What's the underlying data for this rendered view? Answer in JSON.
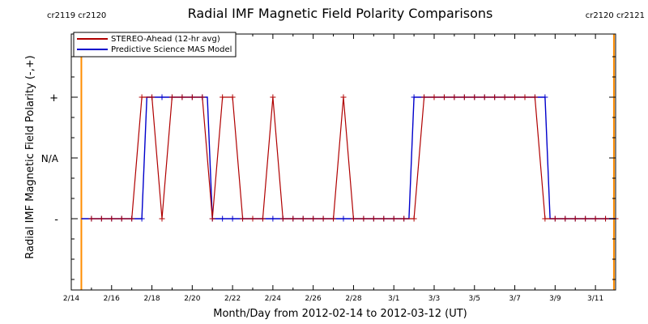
{
  "colors": {
    "stereo": "#b00000",
    "model": "#0000cc",
    "carrington": "#ff8c00"
  },
  "carrington_labels": {
    "left": "cr2119 cr2120",
    "right": "cr2120 cr2121"
  },
  "chart_data": {
    "type": "line",
    "title": "Radial IMF Magnetic Field Polarity Comparisons",
    "xlabel": "Month/Day from 2012-02-14 to 2012-03-12 (UT)",
    "ylabel": "Radial IMF Magnetic Field Polarity (-,+)",
    "x_tick_labels": [
      "2/14",
      "2/16",
      "2/18",
      "2/20",
      "2/22",
      "2/24",
      "2/26",
      "2/28",
      "3/1",
      "3/3",
      "3/5",
      "3/7",
      "3/9",
      "3/11"
    ],
    "y_tick_labels": [
      "-",
      "N/A",
      "+"
    ],
    "xlim": [
      "2012-02-14",
      "2012-03-12"
    ],
    "carrington_boundaries": [
      "2012-02-14 12:00",
      "2012-03-11 22:00"
    ],
    "legend_position": "top-left",
    "series": [
      {
        "name": "STEREO-Ahead (12-hr avg)",
        "points": [
          [
            "2012-02-15 00:00",
            "-"
          ],
          [
            "2012-02-15 12:00",
            "-"
          ],
          [
            "2012-02-16 00:00",
            "-"
          ],
          [
            "2012-02-16 12:00",
            "-"
          ],
          [
            "2012-02-17 00:00",
            "-"
          ],
          [
            "2012-02-17 12:00",
            "+"
          ],
          [
            "2012-02-18 00:00",
            "+"
          ],
          [
            "2012-02-18 12:00",
            "-"
          ],
          [
            "2012-02-19 00:00",
            "+"
          ],
          [
            "2012-02-19 12:00",
            "+"
          ],
          [
            "2012-02-20 00:00",
            "+"
          ],
          [
            "2012-02-20 12:00",
            "+"
          ],
          [
            "2012-02-21 00:00",
            "-"
          ],
          [
            "2012-02-21 12:00",
            "+"
          ],
          [
            "2012-02-22 00:00",
            "+"
          ],
          [
            "2012-02-22 12:00",
            "-"
          ],
          [
            "2012-02-23 00:00",
            "-"
          ],
          [
            "2012-02-23 12:00",
            "-"
          ],
          [
            "2012-02-24 00:00",
            "+"
          ],
          [
            "2012-02-24 12:00",
            "-"
          ],
          [
            "2012-02-25 00:00",
            "-"
          ],
          [
            "2012-02-25 12:00",
            "-"
          ],
          [
            "2012-02-26 00:00",
            "-"
          ],
          [
            "2012-02-26 12:00",
            "-"
          ],
          [
            "2012-02-27 00:00",
            "-"
          ],
          [
            "2012-02-27 12:00",
            "+"
          ],
          [
            "2012-02-28 00:00",
            "-"
          ],
          [
            "2012-02-28 12:00",
            "-"
          ],
          [
            "2012-02-29 00:00",
            "-"
          ],
          [
            "2012-02-29 12:00",
            "-"
          ],
          [
            "2012-03-01 00:00",
            "-"
          ],
          [
            "2012-03-01 12:00",
            "-"
          ],
          [
            "2012-03-02 00:00",
            "-"
          ],
          [
            "2012-03-02 12:00",
            "+"
          ],
          [
            "2012-03-03 00:00",
            "+"
          ],
          [
            "2012-03-03 12:00",
            "+"
          ],
          [
            "2012-03-04 00:00",
            "+"
          ],
          [
            "2012-03-04 12:00",
            "+"
          ],
          [
            "2012-03-05 00:00",
            "+"
          ],
          [
            "2012-03-05 12:00",
            "+"
          ],
          [
            "2012-03-06 00:00",
            "+"
          ],
          [
            "2012-03-06 12:00",
            "+"
          ],
          [
            "2012-03-07 00:00",
            "+"
          ],
          [
            "2012-03-07 12:00",
            "+"
          ],
          [
            "2012-03-08 00:00",
            "+"
          ],
          [
            "2012-03-08 12:00",
            "-"
          ],
          [
            "2012-03-09 00:00",
            "-"
          ],
          [
            "2012-03-09 12:00",
            "-"
          ],
          [
            "2012-03-10 00:00",
            "-"
          ],
          [
            "2012-03-10 12:00",
            "-"
          ],
          [
            "2012-03-11 00:00",
            "-"
          ],
          [
            "2012-03-11 12:00",
            "-"
          ],
          [
            "2012-03-12 00:00",
            "-"
          ]
        ]
      },
      {
        "name": "Predictive Science MAS Model",
        "points": [
          [
            "2012-02-14 12:00",
            "-"
          ],
          [
            "2012-02-17 12:00",
            "-"
          ],
          [
            "2012-02-17 18:00",
            "+"
          ],
          [
            "2012-02-20 18:00",
            "+"
          ],
          [
            "2012-02-21 00:00",
            "-"
          ],
          [
            "2012-03-01 18:00",
            "-"
          ],
          [
            "2012-03-02 00:00",
            "+"
          ],
          [
            "2012-03-08 12:00",
            "+"
          ],
          [
            "2012-03-08 18:00",
            "-"
          ],
          [
            "2012-03-12 00:00",
            "-"
          ]
        ]
      }
    ]
  }
}
